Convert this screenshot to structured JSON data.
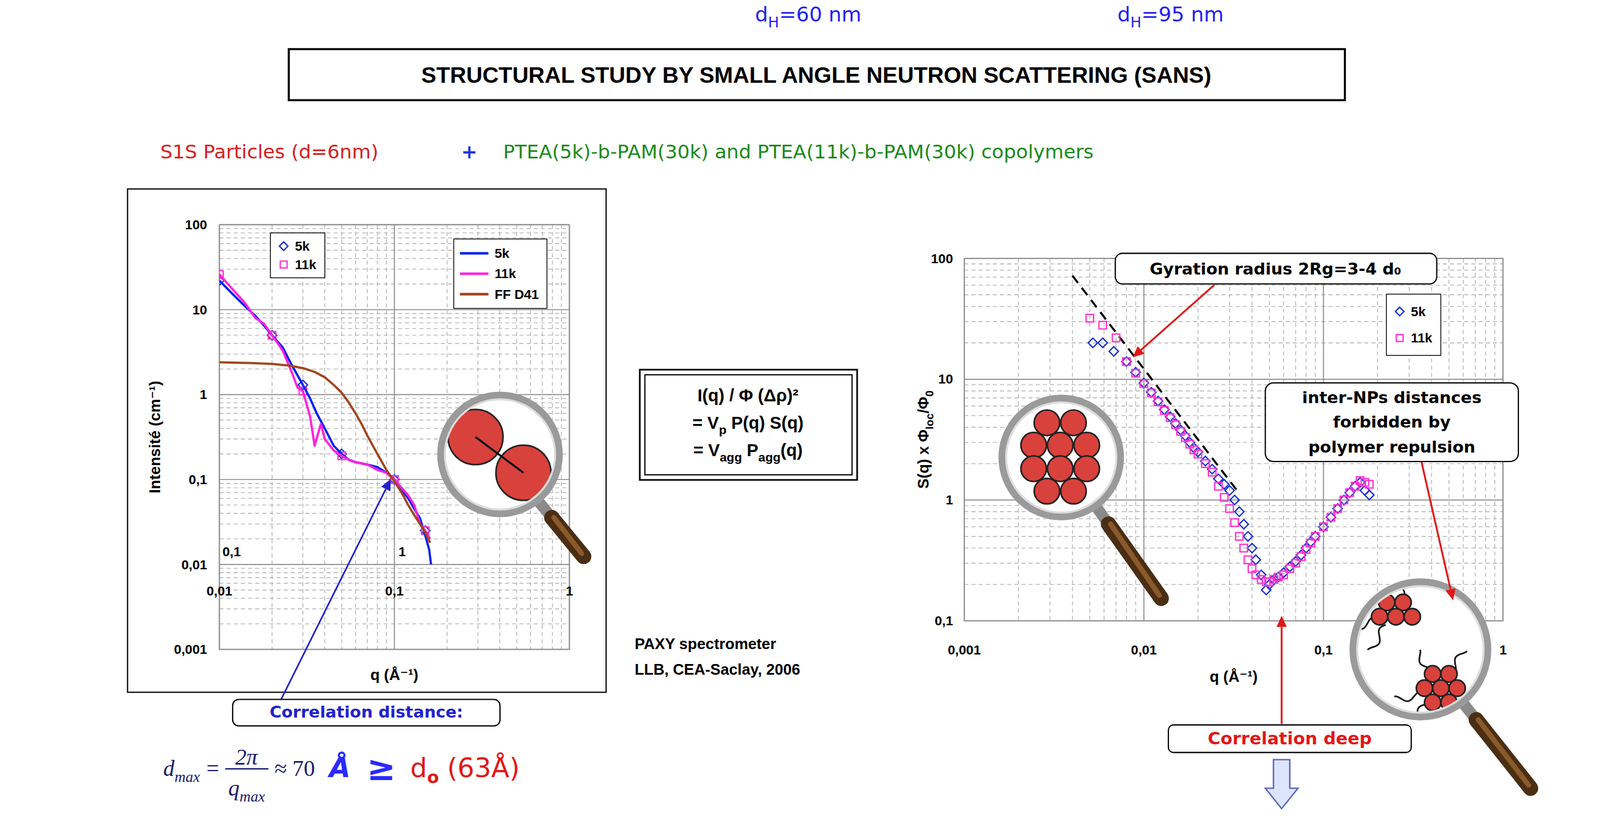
{
  "page": {
    "top_labels": [
      [
        "d",
        {
          "sub": "H"
        },
        "=60 nm"
      ],
      [
        "d",
        {
          "sub": "H"
        },
        "=95 nm"
      ]
    ],
    "title": "STRUCTURAL STUDY BY SMALL ANGLE NEUTRON SCATTERING (SANS)",
    "subtitle": [
      "S1S Particles (d=6nm)",
      "+",
      "PTEA(5k)-b-PAM(30k) and PTEA(11k)-b-PAM(30k) copolymers"
    ],
    "formula": [
      [
        "I(q) / Φ (Δρ)²"
      ],
      [
        "= V",
        {
          "sub": "p"
        },
        " P(q) S(q)"
      ],
      [
        "= V",
        {
          "sub": "agg"
        },
        " P",
        {
          "sub": "agg"
        },
        "(q)"
      ]
    ],
    "instrument": [
      "PAXY spectrometer",
      "LLB, CEA-Saclay, 2006"
    ],
    "correlation_formula": {
      "lhs": "d",
      "lhs_sub": "max",
      "equals": "=",
      "numerator": "2π",
      "denominator": "q",
      "denominator_sub": "max",
      "approx": "≈ 70",
      "unit": "Å",
      "relation": "≥",
      "rhs": "d",
      "rhs_sub": "o",
      "rhs_value": "(63Å)"
    }
  },
  "chart_data": [
    {
      "type": "line",
      "log": true,
      "grid": true,
      "legend": "top",
      "x_label": "q (Å⁻¹)",
      "y_label": "Intensité (cm⁻¹)",
      "xlim": [
        0.01,
        1
      ],
      "ylim": [
        0.001,
        100
      ],
      "xticks": [
        {
          "value": 0.01,
          "label": "0,01"
        },
        {
          "value": 0.1,
          "label": "0,1"
        },
        1
      ],
      "yticks": [
        {
          "value": 0.001,
          "label": "0,001"
        },
        {
          "value": 0.01,
          "label": "0,01"
        },
        {
          "value": 0.1,
          "label": "0,1"
        },
        1,
        10,
        100
      ],
      "series": [
        {
          "name": "5k",
          "type": "scatter",
          "marker": "diamond",
          "color": "#2233cc",
          "x": [
            0.01,
            0.02,
            0.03,
            0.05,
            0.1,
            0.15
          ],
          "values": [
            22,
            5,
            1.3,
            0.2,
            0.1,
            0.025
          ]
        },
        {
          "name": "11k",
          "type": "scatter",
          "marker": "square",
          "color": "#ff33cc",
          "x": [
            0.01,
            0.02,
            0.03,
            0.05,
            0.1,
            0.15
          ],
          "values": [
            26,
            5,
            1.1,
            0.19,
            0.1,
            0.025
          ]
        },
        {
          "name": "5k",
          "type": "line",
          "color": "#0a22ee",
          "x": [
            0.01,
            0.012,
            0.014,
            0.016,
            0.018,
            0.02,
            0.023,
            0.026,
            0.03,
            0.033,
            0.036,
            0.04,
            0.045,
            0.05,
            0.055,
            0.06,
            0.07,
            0.08,
            0.09,
            0.1,
            0.11,
            0.12,
            0.13,
            0.14,
            0.15,
            0.158,
            0.162
          ],
          "values": [
            22,
            15,
            11,
            8.5,
            6.5,
            5,
            3.6,
            2.2,
            1.3,
            0.9,
            0.6,
            0.4,
            0.25,
            0.2,
            0.17,
            0.16,
            0.15,
            0.14,
            0.12,
            0.1,
            0.075,
            0.06,
            0.045,
            0.035,
            0.022,
            0.015,
            0.01
          ]
        },
        {
          "name": "11k",
          "type": "line",
          "color": "#ff22dd",
          "x": [
            0.01,
            0.012,
            0.014,
            0.016,
            0.018,
            0.02,
            0.023,
            0.026,
            0.028,
            0.03,
            0.033,
            0.035,
            0.038,
            0.04,
            0.045,
            0.05,
            0.055,
            0.06,
            0.07,
            0.08,
            0.09,
            0.1,
            0.11,
            0.12,
            0.13,
            0.14,
            0.15,
            0.16
          ],
          "values": [
            26,
            17,
            12,
            8,
            6.8,
            5,
            3.3,
            1.8,
            1.2,
            1.1,
            0.55,
            0.25,
            0.45,
            0.3,
            0.22,
            0.19,
            0.17,
            0.16,
            0.15,
            0.13,
            0.12,
            0.1,
            0.08,
            0.065,
            0.05,
            0.03,
            0.025,
            0.02
          ]
        },
        {
          "name": "FF D41",
          "type": "line",
          "color": "#a0461e",
          "x": [
            0.01,
            0.015,
            0.02,
            0.025,
            0.03,
            0.035,
            0.04,
            0.045,
            0.05,
            0.055,
            0.06,
            0.065,
            0.07,
            0.08,
            0.09,
            0.1,
            0.11,
            0.12,
            0.13,
            0.14,
            0.15,
            0.16
          ],
          "values": [
            2.4,
            2.35,
            2.3,
            2.2,
            2.05,
            1.85,
            1.6,
            1.3,
            1.05,
            0.8,
            0.6,
            0.45,
            0.33,
            0.2,
            0.13,
            0.095,
            0.07,
            0.05,
            0.038,
            0.03,
            0.024,
            0.018
          ]
        }
      ],
      "annotations": [
        "Correlation distance:",
        "0,1",
        "1"
      ]
    },
    {
      "type": "scatter",
      "log": true,
      "grid": true,
      "legend": "top-right",
      "x_label": "q (Å⁻¹)",
      "y_label": [
        "S(q) x Φ",
        {
          "sub": "loc"
        },
        "/Φ",
        {
          "sub": "0"
        }
      ],
      "xlim": [
        0.001,
        1
      ],
      "ylim": [
        0.1,
        100
      ],
      "xticks": [
        {
          "value": 0.001,
          "label": "0,001"
        },
        {
          "value": 0.01,
          "label": "0,01"
        },
        {
          "value": 0.1,
          "label": "0,1"
        },
        1
      ],
      "yticks": [
        {
          "value": 0.1,
          "label": "0,1"
        },
        1,
        10,
        100
      ],
      "series": [
        {
          "type": "line",
          "line_style": "dashed",
          "color": "#000000",
          "x": [
            0.004,
            0.033
          ],
          "values": [
            72,
            1.2
          ]
        },
        {
          "name": "5k",
          "type": "scatter",
          "marker": "diamond",
          "color": "#1a33cc",
          "x": [
            0.0052,
            0.0059,
            0.0068,
            0.008,
            0.009,
            0.01,
            0.011,
            0.012,
            0.013,
            0.014,
            0.015,
            0.016,
            0.017,
            0.018,
            0.019,
            0.02,
            0.022,
            0.024,
            0.026,
            0.028,
            0.03,
            0.032,
            0.034,
            0.036,
            0.038,
            0.04,
            0.042,
            0.045,
            0.048,
            0.05,
            0.053,
            0.056,
            0.06,
            0.065,
            0.07,
            0.075,
            0.08,
            0.085,
            0.09,
            0.1,
            0.11,
            0.12,
            0.13,
            0.14,
            0.15,
            0.16,
            0.17,
            0.18
          ],
          "values": [
            20,
            20,
            17,
            14,
            11.4,
            9.3,
            7.8,
            6.6,
            5.6,
            4.9,
            4.3,
            3.8,
            3.4,
            3.0,
            2.7,
            2.5,
            2.1,
            1.8,
            1.5,
            1.35,
            1.2,
            1.0,
            0.8,
            0.63,
            0.5,
            0.4,
            0.32,
            0.24,
            0.18,
            0.2,
            0.22,
            0.23,
            0.25,
            0.28,
            0.31,
            0.35,
            0.4,
            0.45,
            0.5,
            0.6,
            0.72,
            0.85,
            1.0,
            1.15,
            1.3,
            1.4,
            1.2,
            1.1
          ]
        },
        {
          "name": "11k",
          "type": "scatter",
          "marker": "square",
          "color": "#ff33cc",
          "x": [
            0.005,
            0.0059,
            0.007,
            0.008,
            0.009,
            0.01,
            0.011,
            0.012,
            0.013,
            0.014,
            0.015,
            0.016,
            0.017,
            0.018,
            0.019,
            0.02,
            0.022,
            0.024,
            0.026,
            0.028,
            0.03,
            0.032,
            0.034,
            0.036,
            0.038,
            0.04,
            0.042,
            0.045,
            0.048,
            0.05,
            0.053,
            0.056,
            0.06,
            0.065,
            0.07,
            0.075,
            0.08,
            0.085,
            0.09,
            0.1,
            0.11,
            0.12,
            0.13,
            0.14,
            0.15,
            0.16,
            0.17,
            0.18
          ],
          "values": [
            32,
            28,
            22,
            14,
            11.2,
            9.2,
            7.7,
            6.5,
            5.5,
            4.8,
            4.2,
            3.7,
            3.3,
            2.9,
            2.6,
            2.4,
            2.0,
            1.7,
            1.3,
            1.05,
            0.85,
            0.65,
            0.5,
            0.4,
            0.32,
            0.27,
            0.24,
            0.22,
            0.21,
            0.21,
            0.22,
            0.23,
            0.24,
            0.27,
            0.3,
            0.34,
            0.39,
            0.44,
            0.5,
            0.6,
            0.72,
            0.85,
            1.0,
            1.15,
            1.3,
            1.45,
            1.4,
            1.35
          ]
        }
      ],
      "annotations": [
        "Gyration radius 2Rg=3-4 d₀",
        "inter-NPs distances",
        "forbidden by",
        "polymer repulsion",
        "Correlation deep"
      ]
    }
  ]
}
